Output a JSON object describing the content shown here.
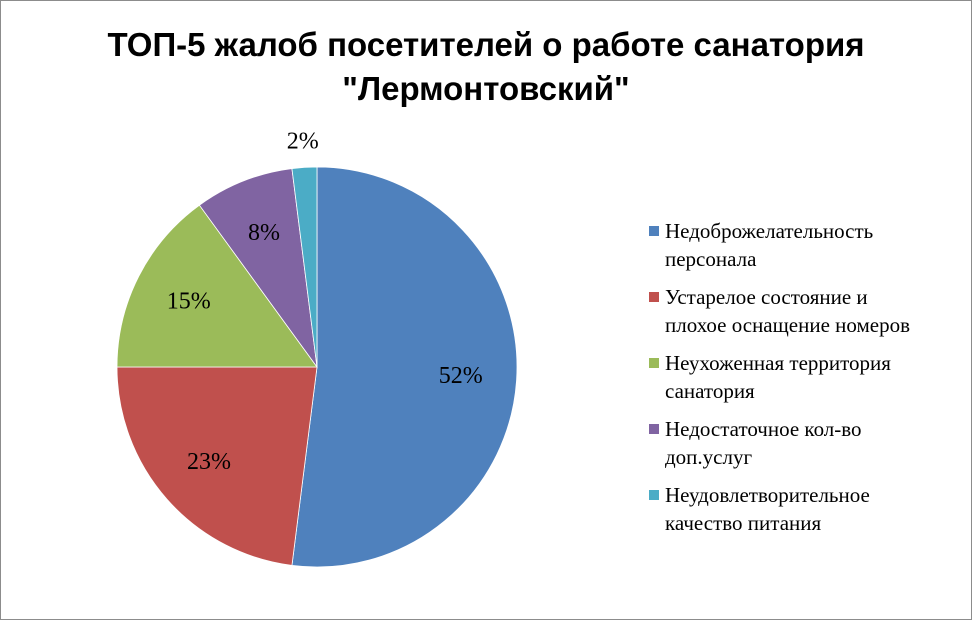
{
  "chart_data": {
    "type": "pie",
    "title_lines": [
      "ТОП-5 жалоб посетителей о работе санатория",
      "\"Лермонтовский\""
    ],
    "categories": [
      "Недоброжелательность персонала",
      "Устарелое состояние и плохое оснащение номеров",
      "Неухоженная территория санатория",
      "Недостаточное кол-во доп.услуг",
      "Неудовлетворительное качество питания"
    ],
    "legend_lines": [
      [
        "Недоброжелательность",
        "персонала"
      ],
      [
        "Устарелое состояние и",
        "плохое оснащение  номеров"
      ],
      [
        "Неухоженная территория",
        "санатория"
      ],
      [
        "Недостаточное кол-во",
        "доп.услуг"
      ],
      [
        "Неудовлетворительное",
        "качество питания"
      ]
    ],
    "values": [
      52,
      23,
      15,
      8,
      2
    ],
    "data_labels": [
      "52%",
      "23%",
      "15%",
      "8%",
      "2%"
    ],
    "colors": [
      "#4F81BD",
      "#C0504D",
      "#9BBB59",
      "#8064A2",
      "#4BACC6"
    ],
    "start_angle": "12 o'clock",
    "direction": "clockwise",
    "legend_position": "right"
  }
}
